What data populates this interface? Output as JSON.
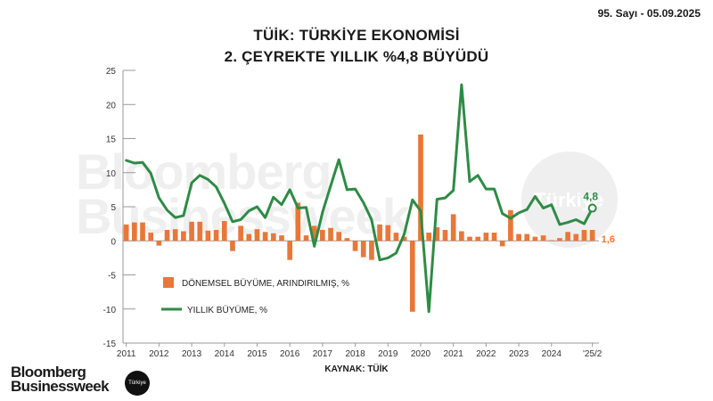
{
  "header": {
    "issue": "95. Sayı - 05.09.2025",
    "title_line1": "TÜİK: TÜRKİYE EKONOMİSİ",
    "title_line2": "2. ÇEYREKTE YILLIK %4,8 BÜYÜDÜ"
  },
  "watermark": {
    "line1": "Bloomberg",
    "line2": "Businessweek",
    "circle": "Türkiye"
  },
  "source": "KAYNAK: TÜİK",
  "logo": {
    "line1": "Bloomberg",
    "line2": "Businessweek",
    "badge": "Türkiye"
  },
  "colors": {
    "bar": "#e8773a",
    "line": "#2e8b45",
    "axis": "#666666"
  },
  "chart_data": {
    "type": "bar+line",
    "ylim": [
      -15,
      25
    ],
    "y_ticks": [
      "25",
      "20",
      "15",
      "10",
      "5",
      "0",
      "-5",
      "-10",
      "-15"
    ],
    "x_tick_labels": [
      "2011",
      "2012",
      "2013",
      "2014",
      "2015",
      "2016",
      "2017",
      "2018",
      "2019",
      "2020",
      "2021",
      "2022",
      "2023",
      "2024",
      "'25/2"
    ],
    "legend_position": "bottom-left-inside",
    "source": "KAYNAK: TÜİK",
    "series": [
      {
        "name": "DÖNEMSEL BÜYÜME, ARINDIRILMIŞ, %",
        "type": "bar",
        "color": "#e8773a",
        "x": [
          2011.0,
          2011.25,
          2011.5,
          2011.75,
          2012.0,
          2012.25,
          2012.5,
          2012.75,
          2013.0,
          2013.25,
          2013.5,
          2013.75,
          2014.0,
          2014.25,
          2014.5,
          2014.75,
          2015.0,
          2015.25,
          2015.5,
          2015.75,
          2016.0,
          2016.25,
          2016.5,
          2016.75,
          2017.0,
          2017.25,
          2017.5,
          2017.75,
          2018.0,
          2018.25,
          2018.5,
          2018.75,
          2019.0,
          2019.25,
          2019.5,
          2019.75,
          2020.0,
          2020.25,
          2020.5,
          2020.75,
          2021.0,
          2021.25,
          2021.5,
          2021.75,
          2022.0,
          2022.25,
          2022.5,
          2022.75,
          2023.0,
          2023.25,
          2023.5,
          2023.75,
          2024.0,
          2024.25,
          2024.5,
          2024.75,
          2025.0,
          2025.25
        ],
        "y": [
          2.4,
          2.7,
          2.7,
          1.2,
          -0.7,
          1.6,
          1.7,
          1.4,
          2.8,
          2.8,
          1.5,
          1.6,
          2.9,
          -1.5,
          2.2,
          1.0,
          1.7,
          1.3,
          1.1,
          0.8,
          -2.8,
          5.6,
          0.8,
          2.2,
          1.6,
          1.9,
          1.3,
          0.4,
          -1.5,
          -2.4,
          -2.8,
          2.4,
          2.3,
          1.2,
          0.6,
          -10.4,
          15.6,
          1.2,
          2.0,
          1.6,
          3.9,
          1.4,
          0.6,
          0.6,
          1.2,
          1.2,
          -0.8,
          4.5,
          1.0,
          1.0,
          0.6,
          0.8,
          0.1,
          0.4,
          1.3,
          1.0,
          1.6,
          1.6
        ]
      },
      {
        "name": "YILLIK BÜYÜME, %",
        "type": "line",
        "color": "#2e8b45",
        "x": [
          2011.0,
          2011.25,
          2011.5,
          2011.75,
          2012.0,
          2012.25,
          2012.5,
          2012.75,
          2013.0,
          2013.25,
          2013.5,
          2013.75,
          2014.0,
          2014.25,
          2014.5,
          2014.75,
          2015.0,
          2015.25,
          2015.5,
          2015.75,
          2016.0,
          2016.25,
          2016.5,
          2016.75,
          2017.0,
          2017.25,
          2017.5,
          2017.75,
          2018.0,
          2018.25,
          2018.5,
          2018.75,
          2019.0,
          2019.25,
          2019.5,
          2019.75,
          2020.0,
          2020.25,
          2020.5,
          2020.75,
          2021.0,
          2021.25,
          2021.5,
          2021.75,
          2022.0,
          2022.25,
          2022.5,
          2022.75,
          2023.0,
          2023.25,
          2023.5,
          2023.75,
          2024.0,
          2024.25,
          2024.5,
          2024.75,
          2025.0,
          2025.25
        ],
        "y": [
          11.8,
          11.4,
          11.5,
          9.9,
          6.3,
          4.5,
          3.4,
          3.7,
          8.5,
          9.6,
          9.0,
          7.9,
          5.5,
          2.8,
          3.1,
          4.4,
          5.0,
          3.4,
          6.4,
          5.3,
          7.5,
          4.8,
          4.9,
          -0.8,
          4.2,
          8.1,
          11.9,
          7.5,
          7.6,
          5.6,
          3.1,
          -2.8,
          -2.5,
          -1.8,
          1.0,
          6.0,
          4.4,
          -10.4,
          6.1,
          6.3,
          7.4,
          22.9,
          8.7,
          9.6,
          7.6,
          7.6,
          4.0,
          3.3,
          4.1,
          4.6,
          6.5,
          4.8,
          5.3,
          2.4,
          2.7,
          3.1,
          2.5,
          4.8
        ]
      }
    ],
    "annotations": [
      {
        "text": "4,8",
        "color": "#2e8b45",
        "x": 2025.25,
        "y": 4.8
      },
      {
        "text": "1,6",
        "color": "#e8773a",
        "x": 2025.25,
        "y": 1.6
      }
    ]
  }
}
